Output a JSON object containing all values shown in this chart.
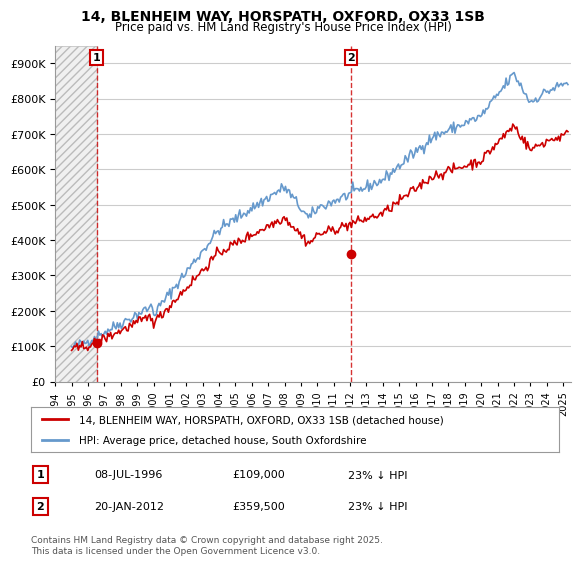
{
  "title_line1": "14, BLENHEIM WAY, HORSPATH, OXFORD, OX33 1SB",
  "title_line2": "Price paid vs. HM Land Registry's House Price Index (HPI)",
  "ylabel": "",
  "background_color": "#ffffff",
  "plot_bg_color": "#ffffff",
  "grid_color": "#cccccc",
  "hpi_color": "#6699cc",
  "price_color": "#cc0000",
  "dashed_line_color": "#cc0000",
  "annotation_box_color": "#cc0000",
  "sale1_date_x": 1996.52,
  "sale1_price": 109000,
  "sale2_date_x": 2012.05,
  "sale2_price": 359500,
  "legend_label1": "14, BLENHEIM WAY, HORSPATH, OXFORD, OX33 1SB (detached house)",
  "legend_label2": "HPI: Average price, detached house, South Oxfordshire",
  "table_row1": "1    08-JUL-1996    £109,000    23% ↓ HPI",
  "table_row2": "2    20-JAN-2012    £359,500    23% ↓ HPI",
  "footer": "Contains HM Land Registry data © Crown copyright and database right 2025.\nThis data is licensed under the Open Government Licence v3.0.",
  "xmin": 1994.0,
  "xmax": 2025.5,
  "ymin": 0,
  "ymax": 950000
}
